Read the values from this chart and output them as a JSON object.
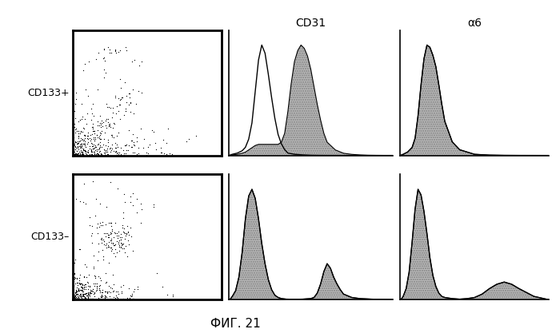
{
  "title": "ФИГ. 21",
  "col_labels": [
    "CD31",
    "α6"
  ],
  "row_labels": [
    "CD133+",
    "CD133–"
  ],
  "background_color": "#ffffff",
  "text_color": "#000000",
  "hist_cd31_row0_outline": {
    "x": [
      0.0,
      0.02,
      0.05,
      0.08,
      0.1,
      0.12,
      0.14,
      0.16,
      0.18,
      0.2,
      0.22,
      0.24,
      0.26,
      0.28,
      0.3,
      0.32,
      0.34,
      0.36,
      0.4,
      0.45,
      0.5,
      0.55,
      0.6,
      0.7,
      0.8,
      0.9,
      1.0
    ],
    "y": [
      0.0,
      0.01,
      0.02,
      0.04,
      0.07,
      0.14,
      0.28,
      0.55,
      0.82,
      0.95,
      0.88,
      0.7,
      0.5,
      0.32,
      0.18,
      0.1,
      0.05,
      0.02,
      0.01,
      0.005,
      0.002,
      0.001,
      0.0005,
      0.0002,
      0.0001,
      5e-05,
      0.0
    ]
  },
  "hist_cd31_row0_filled": {
    "x": [
      0.0,
      0.02,
      0.05,
      0.08,
      0.1,
      0.12,
      0.14,
      0.16,
      0.18,
      0.2,
      0.22,
      0.24,
      0.26,
      0.28,
      0.3,
      0.32,
      0.34,
      0.36,
      0.38,
      0.4,
      0.42,
      0.44,
      0.46,
      0.48,
      0.5,
      0.52,
      0.54,
      0.56,
      0.58,
      0.6,
      0.65,
      0.7,
      0.75,
      0.8,
      0.85,
      0.9,
      1.0
    ],
    "y": [
      0.0,
      0.005,
      0.01,
      0.02,
      0.03,
      0.05,
      0.07,
      0.09,
      0.1,
      0.1,
      0.1,
      0.1,
      0.1,
      0.1,
      0.1,
      0.12,
      0.2,
      0.4,
      0.65,
      0.85,
      0.95,
      1.0,
      0.97,
      0.9,
      0.78,
      0.62,
      0.46,
      0.32,
      0.2,
      0.12,
      0.05,
      0.02,
      0.01,
      0.005,
      0.002,
      0.001,
      0.0
    ]
  },
  "hist_a6_row0_outline": {
    "x": [
      0.0,
      0.02,
      0.05,
      0.08,
      0.1,
      0.12,
      0.14,
      0.16,
      0.18,
      0.2,
      0.22,
      0.24,
      0.26,
      0.28,
      0.3,
      0.35,
      0.4,
      0.5,
      0.6,
      0.7,
      0.8,
      1.0
    ],
    "y": [
      0.0,
      0.01,
      0.03,
      0.07,
      0.15,
      0.35,
      0.62,
      0.85,
      0.97,
      0.95,
      0.88,
      0.78,
      0.62,
      0.45,
      0.3,
      0.12,
      0.05,
      0.01,
      0.003,
      0.001,
      0.0005,
      0.0
    ]
  },
  "hist_a6_row0_filled": {
    "x": [
      0.0,
      0.02,
      0.05,
      0.08,
      0.1,
      0.12,
      0.14,
      0.16,
      0.18,
      0.2,
      0.22,
      0.24,
      0.26,
      0.28,
      0.3,
      0.35,
      0.4,
      0.5,
      0.6,
      0.7,
      0.8,
      1.0
    ],
    "y": [
      0.0,
      0.01,
      0.03,
      0.07,
      0.15,
      0.35,
      0.62,
      0.85,
      0.97,
      0.95,
      0.88,
      0.78,
      0.62,
      0.45,
      0.3,
      0.12,
      0.05,
      0.01,
      0.003,
      0.001,
      0.0005,
      0.0
    ]
  },
  "hist_cd31_row1_outline": {
    "x": [
      0.0,
      0.01,
      0.02,
      0.04,
      0.06,
      0.08,
      0.1,
      0.12,
      0.14,
      0.16,
      0.18,
      0.2,
      0.22,
      0.24,
      0.26,
      0.28,
      0.3,
      0.32,
      0.35,
      0.4,
      0.45,
      0.5,
      0.52,
      0.54,
      0.56,
      0.58,
      0.6,
      0.62,
      0.64,
      0.66,
      0.68,
      0.7,
      0.75,
      0.8,
      0.9,
      1.0
    ],
    "y": [
      0.0,
      0.01,
      0.03,
      0.08,
      0.2,
      0.42,
      0.72,
      0.92,
      0.98,
      0.9,
      0.72,
      0.5,
      0.32,
      0.18,
      0.09,
      0.04,
      0.02,
      0.01,
      0.005,
      0.003,
      0.005,
      0.01,
      0.02,
      0.06,
      0.14,
      0.25,
      0.32,
      0.28,
      0.2,
      0.14,
      0.09,
      0.05,
      0.02,
      0.01,
      0.003,
      0.0
    ]
  },
  "hist_cd31_row1_filled": {
    "x": [
      0.0,
      0.01,
      0.02,
      0.04,
      0.06,
      0.08,
      0.1,
      0.12,
      0.14,
      0.16,
      0.18,
      0.2,
      0.22,
      0.24,
      0.26,
      0.28,
      0.3,
      0.32,
      0.35,
      0.4,
      0.45,
      0.5,
      0.52,
      0.54,
      0.56,
      0.58,
      0.6,
      0.62,
      0.64,
      0.66,
      0.68,
      0.7,
      0.75,
      0.8,
      0.9,
      1.0
    ],
    "y": [
      0.0,
      0.01,
      0.03,
      0.08,
      0.2,
      0.42,
      0.72,
      0.92,
      0.98,
      0.9,
      0.72,
      0.5,
      0.32,
      0.18,
      0.09,
      0.04,
      0.02,
      0.01,
      0.005,
      0.003,
      0.005,
      0.01,
      0.02,
      0.06,
      0.14,
      0.25,
      0.32,
      0.28,
      0.2,
      0.14,
      0.09,
      0.05,
      0.02,
      0.01,
      0.003,
      0.0
    ]
  },
  "hist_a6_row1_outline": {
    "x": [
      0.0,
      0.01,
      0.02,
      0.04,
      0.06,
      0.08,
      0.1,
      0.12,
      0.14,
      0.16,
      0.18,
      0.2,
      0.22,
      0.24,
      0.26,
      0.28,
      0.3,
      0.35,
      0.4,
      0.45,
      0.5,
      0.55,
      0.6,
      0.65,
      0.7,
      0.75,
      0.8,
      0.9,
      1.0
    ],
    "y": [
      0.0,
      0.01,
      0.03,
      0.1,
      0.25,
      0.52,
      0.82,
      1.0,
      0.95,
      0.8,
      0.6,
      0.38,
      0.22,
      0.12,
      0.06,
      0.03,
      0.02,
      0.01,
      0.005,
      0.01,
      0.02,
      0.05,
      0.1,
      0.14,
      0.16,
      0.14,
      0.1,
      0.03,
      0.0
    ]
  },
  "hist_a6_row1_filled": {
    "x": [
      0.0,
      0.01,
      0.02,
      0.04,
      0.06,
      0.08,
      0.1,
      0.12,
      0.14,
      0.16,
      0.18,
      0.2,
      0.22,
      0.24,
      0.26,
      0.28,
      0.3,
      0.35,
      0.4,
      0.45,
      0.5,
      0.55,
      0.6,
      0.65,
      0.7,
      0.75,
      0.8,
      0.9,
      1.0
    ],
    "y": [
      0.0,
      0.01,
      0.03,
      0.1,
      0.25,
      0.52,
      0.82,
      1.0,
      0.95,
      0.8,
      0.6,
      0.38,
      0.22,
      0.12,
      0.06,
      0.03,
      0.02,
      0.01,
      0.005,
      0.01,
      0.02,
      0.05,
      0.1,
      0.14,
      0.16,
      0.14,
      0.1,
      0.03,
      0.0
    ]
  }
}
